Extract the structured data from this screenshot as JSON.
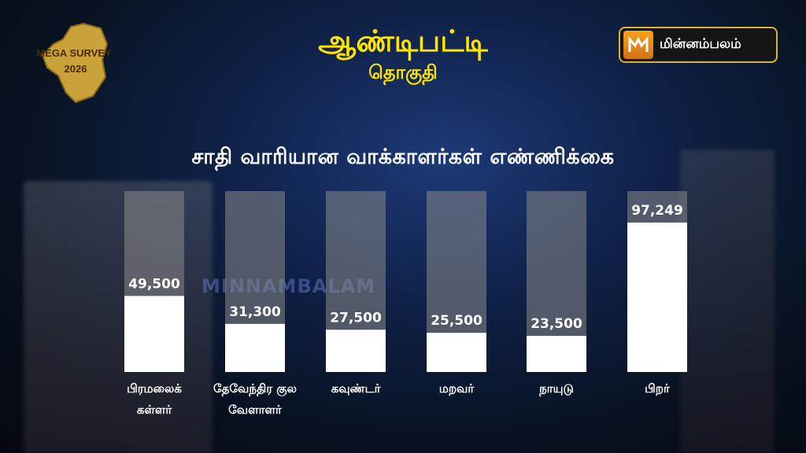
{
  "header": {
    "badge_line1": "MEGA SURVEY",
    "badge_line2": "2026",
    "title": "ஆண்டிபட்டி",
    "subtitle": "தொகுதி",
    "brand": "மின்னம்பலம்",
    "brand_icon": "m-logo-icon"
  },
  "watermark": "MINNAMBALAM",
  "colors": {
    "title": "#ffe400",
    "bar_fill": "#ffffff",
    "bar_track": "#8a8a8a",
    "brand_border": "#d8b23a"
  },
  "chart_data": {
    "type": "bar",
    "title": "சாதி வாரியான வாக்காளர்கள் எண்ணிக்கை",
    "categories": [
      "பிரமலைக் கள்ளர்",
      "தேவேந்திர குல வேளாளர்",
      "கவுண்டர்",
      "மறவர்",
      "நாயுடு",
      "பிறர்"
    ],
    "category_lines": [
      [
        "பிரமலைக்",
        "கள்ளர்"
      ],
      [
        "தேவேந்திர குல",
        "வேளாளர்"
      ],
      [
        "கவுண்டர்"
      ],
      [
        "மறவர்"
      ],
      [
        "நாயுடு"
      ],
      [
        "பிறர்"
      ]
    ],
    "values": [
      49500,
      31300,
      27500,
      25500,
      23500,
      97249
    ],
    "value_labels": [
      "49,500",
      "31,300",
      "27,500",
      "25,500",
      "23,500",
      "97,249"
    ],
    "ylim": [
      0,
      110000
    ],
    "grid": false,
    "legend": "none"
  }
}
